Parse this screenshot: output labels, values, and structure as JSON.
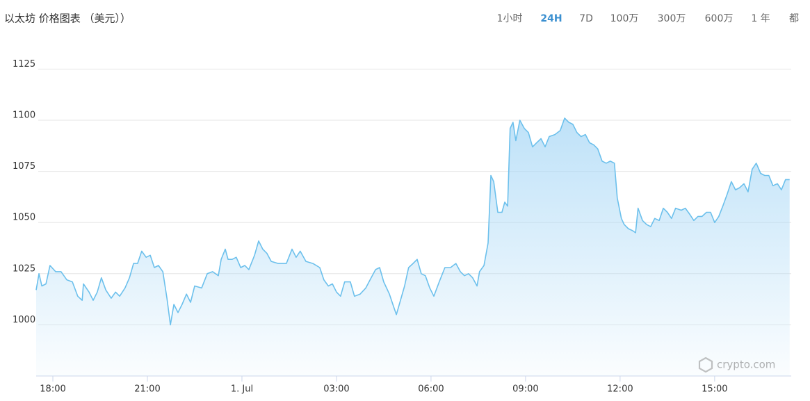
{
  "chart_data": {
    "type": "line",
    "title": "以太坊 价格图表 （美元））",
    "range_options": [
      "1小时",
      "24H",
      "7D",
      "100万",
      "300万",
      "600万",
      "1 年",
      "都"
    ],
    "selected_range": 1,
    "watermark": "crypto.com",
    "color": "#6cc0ec",
    "grid": true,
    "xlim": [
      17.47,
      41.43
    ],
    "xticks": [
      {
        "value": 18,
        "label": "18:00"
      },
      {
        "value": 21,
        "label": "21:00"
      },
      {
        "value": 24,
        "label": "1. Jul"
      },
      {
        "value": 27,
        "label": "03:00"
      },
      {
        "value": 30,
        "label": "06:00"
      },
      {
        "value": 33,
        "label": "09:00"
      },
      {
        "value": 36,
        "label": "12:00"
      },
      {
        "value": 39,
        "label": "15:00"
      }
    ],
    "ylim": [
      975,
      1137.7
    ],
    "yticks": [
      1000,
      1025,
      1050,
      1075,
      1100,
      1125
    ],
    "x": [
      17.47,
      17.56,
      17.65,
      17.78,
      17.91,
      18.09,
      18.26,
      18.44,
      18.62,
      18.79,
      18.93,
      18.97,
      19.15,
      19.28,
      19.41,
      19.54,
      19.68,
      19.85,
      19.99,
      20.12,
      20.29,
      20.43,
      20.56,
      20.69,
      20.82,
      20.96,
      21.09,
      21.22,
      21.35,
      21.49,
      21.62,
      21.73,
      21.84,
      21.97,
      22.1,
      22.24,
      22.37,
      22.5,
      22.72,
      22.9,
      23.07,
      23.25,
      23.34,
      23.47,
      23.56,
      23.69,
      23.82,
      23.96,
      24.09,
      24.22,
      24.4,
      24.53,
      24.66,
      24.79,
      24.93,
      25.15,
      25.41,
      25.59,
      25.72,
      25.85,
      26.03,
      26.25,
      26.47,
      26.6,
      26.74,
      26.87,
      27.0,
      27.13,
      27.26,
      27.44,
      27.57,
      27.75,
      27.93,
      28.1,
      28.24,
      28.37,
      28.5,
      28.68,
      28.81,
      28.9,
      29.03,
      29.16,
      29.29,
      29.43,
      29.56,
      29.69,
      29.82,
      29.96,
      30.09,
      30.26,
      30.44,
      30.62,
      30.79,
      30.93,
      31.06,
      31.19,
      31.32,
      31.46,
      31.54,
      31.68,
      31.81,
      31.9,
      31.99,
      32.12,
      32.25,
      32.34,
      32.43,
      32.51,
      32.6,
      32.69,
      32.82,
      32.96,
      33.09,
      33.22,
      33.35,
      33.49,
      33.62,
      33.75,
      33.93,
      34.1,
      34.24,
      34.37,
      34.5,
      34.63,
      34.76,
      34.9,
      35.03,
      35.16,
      35.29,
      35.43,
      35.56,
      35.69,
      35.82,
      35.91,
      36.04,
      36.13,
      36.26,
      36.4,
      36.49,
      36.57,
      36.71,
      36.84,
      36.97,
      37.1,
      37.24,
      37.37,
      37.5,
      37.63,
      37.76,
      37.94,
      38.07,
      38.21,
      38.34,
      38.47,
      38.6,
      38.74,
      38.87,
      39.0,
      39.13,
      39.26,
      39.4,
      39.53,
      39.66,
      39.79,
      39.93,
      40.06,
      40.19,
      40.32,
      40.46,
      40.59,
      40.72,
      40.85,
      40.99,
      41.12,
      41.25,
      41.38
    ],
    "values": [
      1017,
      1025,
      1019,
      1020,
      1029,
      1026,
      1026,
      1022,
      1021,
      1014,
      1012,
      1020,
      1016,
      1012,
      1016,
      1023,
      1017,
      1013,
      1016,
      1014,
      1018,
      1023,
      1030,
      1030,
      1036,
      1033,
      1034,
      1028,
      1029,
      1026,
      1013,
      1000,
      1010,
      1006,
      1010,
      1015,
      1011,
      1019,
      1018,
      1025,
      1026,
      1024,
      1032,
      1037,
      1032,
      1032,
      1033,
      1028,
      1029,
      1027,
      1034,
      1041,
      1037,
      1035,
      1031,
      1030,
      1030,
      1037,
      1033,
      1036,
      1031,
      1030,
      1028,
      1022,
      1019,
      1020,
      1016,
      1014,
      1021,
      1021,
      1014,
      1015,
      1018,
      1023,
      1027,
      1028,
      1021,
      1015,
      1009,
      1005,
      1012,
      1019,
      1028,
      1030,
      1032,
      1025,
      1024,
      1018,
      1014,
      1021,
      1028,
      1028,
      1030,
      1026,
      1024,
      1025,
      1023,
      1019,
      1026,
      1029,
      1040,
      1073,
      1070,
      1055,
      1055,
      1060,
      1058,
      1096,
      1099,
      1090,
      1100,
      1096,
      1094,
      1087,
      1089,
      1091,
      1087,
      1092,
      1093,
      1095,
      1101,
      1099,
      1098,
      1094,
      1092,
      1093,
      1089,
      1088,
      1086,
      1080,
      1079,
      1080,
      1079,
      1062,
      1052,
      1049,
      1047,
      1046,
      1045,
      1057,
      1051,
      1049,
      1048,
      1052,
      1051,
      1057,
      1055,
      1052,
      1057,
      1056,
      1057,
      1054,
      1051,
      1053,
      1053,
      1055,
      1055,
      1050,
      1053,
      1058,
      1064,
      1070,
      1066,
      1067,
      1069,
      1065,
      1076,
      1079,
      1074,
      1073,
      1073,
      1068,
      1069,
      1066,
      1071,
      1071
    ]
  }
}
